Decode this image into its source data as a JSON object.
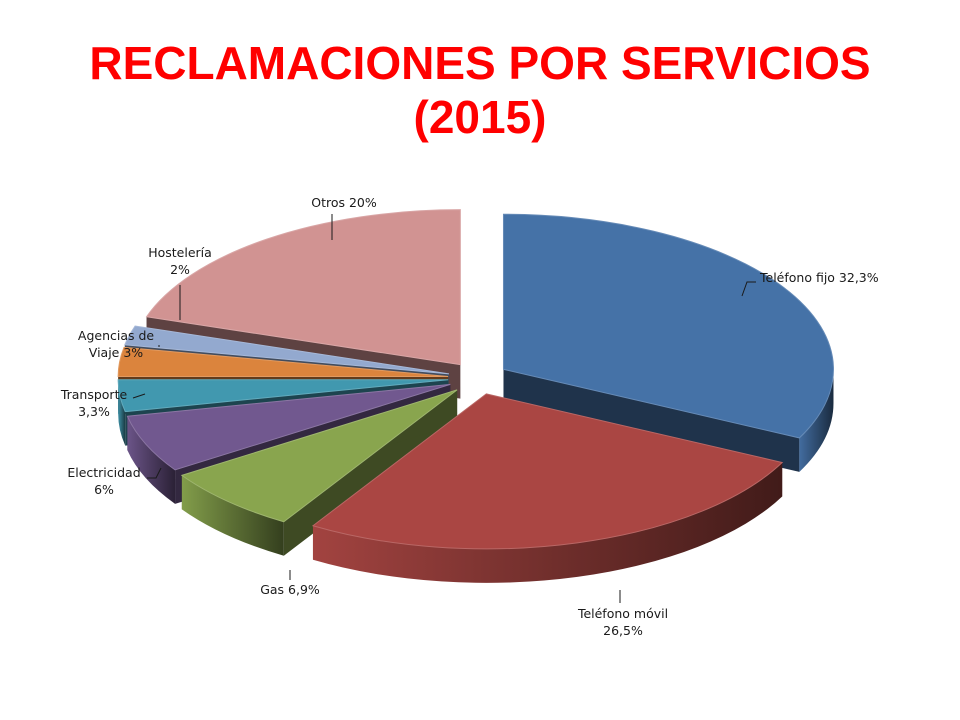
{
  "title_lines": [
    "RECLAMACIONES POR SERVICIOS",
    "(2015)"
  ],
  "chart_data": {
    "type": "pie",
    "style": "3d-exploded",
    "title": "RECLAMACIONES POR SERVICIOS (2015)",
    "unit": "%",
    "slices": [
      {
        "key": "telefono-fijo",
        "label_lines": [
          "Teléfono fijo 32,3%"
        ],
        "category": "Teléfono fijo",
        "value": 32.3,
        "color": "#4572a7"
      },
      {
        "key": "telefono-movil",
        "label_lines": [
          "Teléfono móvil",
          "26,5%"
        ],
        "category": "Teléfono móvil",
        "value": 26.5,
        "color": "#aa4643"
      },
      {
        "key": "gas",
        "label_lines": [
          "Gas 6,9%"
        ],
        "category": "Gas",
        "value": 6.9,
        "color": "#89a54e"
      },
      {
        "key": "electricidad",
        "label_lines": [
          "Electricidad",
          "6%"
        ],
        "category": "Electricidad",
        "value": 6,
        "color": "#71588f"
      },
      {
        "key": "transporte",
        "label_lines": [
          "Transporte",
          "3,3%"
        ],
        "category": "Transporte",
        "value": 3.3,
        "color": "#4198af"
      },
      {
        "key": "agencias-de-viaje",
        "label_lines": [
          "Agencias de",
          "Viaje 3%"
        ],
        "category": "Agencias de Viaje",
        "value": 3,
        "color": "#db843d"
      },
      {
        "key": "hosteleria",
        "label_lines": [
          "Hostelería",
          "2%"
        ],
        "category": "Hostelería",
        "value": 2,
        "color": "#93a9cf"
      },
      {
        "key": "otros",
        "label_lines": [
          "Otros 20%"
        ],
        "category": "Otros",
        "value": 20,
        "color": "#d19392"
      }
    ]
  }
}
